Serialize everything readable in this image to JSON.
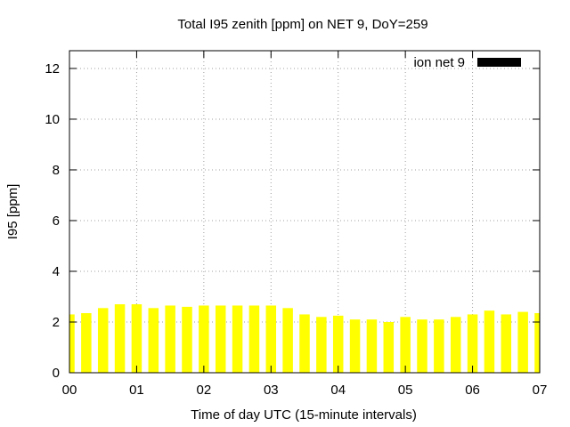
{
  "chart_data": {
    "type": "bar",
    "title": "Total I95 zenith [ppm] on NET 9, DoY=259",
    "xlabel": "Time of day UTC (15-minute intervals)",
    "ylabel": "I95 [ppm]",
    "ylim": [
      0,
      12.7
    ],
    "yticks": [
      "0",
      "2",
      "4",
      "6",
      "8",
      "10",
      "12"
    ],
    "xlim": [
      0,
      7
    ],
    "xticks": [
      "00",
      "01",
      "02",
      "03",
      "04",
      "05",
      "06",
      "07"
    ],
    "grid": true,
    "legend_position": "top-right",
    "series": [
      {
        "name": "ion net 9",
        "color": "#ffff00",
        "legend_color": "#000000",
        "x": [
          0.0,
          0.25,
          0.5,
          0.75,
          1.0,
          1.25,
          1.5,
          1.75,
          2.0,
          2.25,
          2.5,
          2.75,
          3.0,
          3.25,
          3.5,
          3.75,
          4.0,
          4.25,
          4.5,
          4.75,
          5.0,
          5.25,
          5.5,
          5.75,
          6.0,
          6.25,
          6.5,
          6.75,
          7.0
        ],
        "values": [
          2.3,
          2.35,
          2.55,
          2.7,
          2.7,
          2.55,
          2.65,
          2.6,
          2.65,
          2.65,
          2.65,
          2.65,
          2.65,
          2.55,
          2.3,
          2.2,
          2.25,
          2.1,
          2.1,
          2.0,
          2.2,
          2.1,
          2.1,
          2.2,
          2.3,
          2.45,
          2.3,
          2.4,
          2.35
        ]
      }
    ]
  }
}
